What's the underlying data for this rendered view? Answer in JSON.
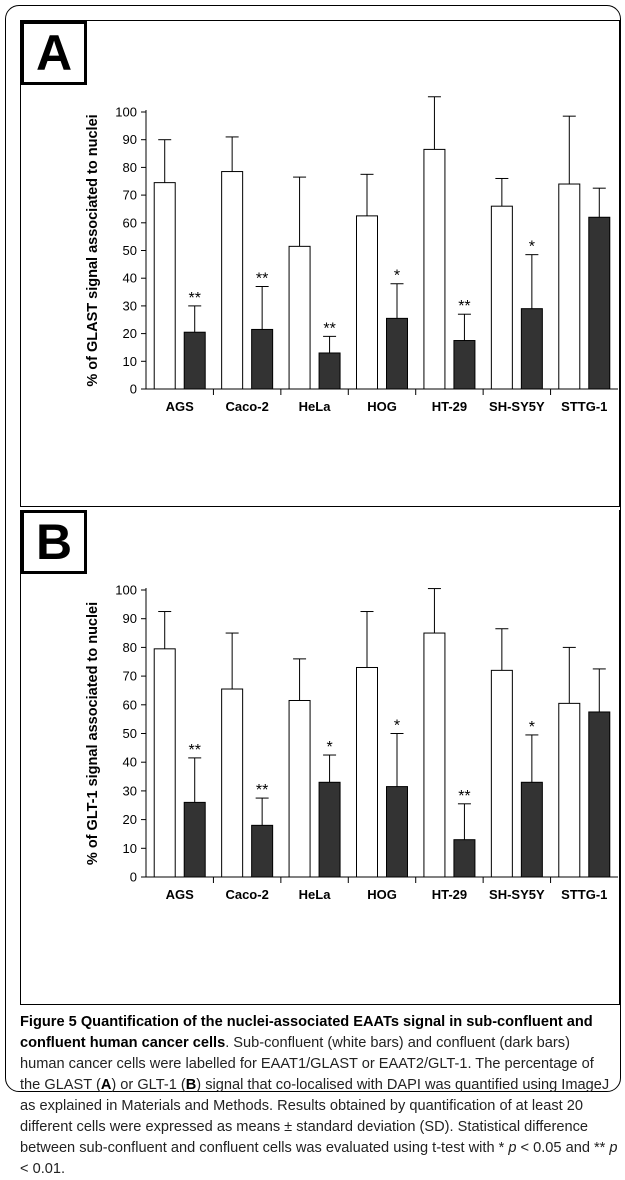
{
  "chart_data": [
    {
      "type": "bar",
      "panel_label": "A",
      "ylabel": "% of GLAST signal associated to nuclei",
      "categories": [
        "AGS",
        "Caco-2",
        "HeLa",
        "HOG",
        "HT-29",
        "SH-SY5Y",
        "STTG-1"
      ],
      "ylim": [
        0,
        100
      ],
      "yticks": [
        0,
        10,
        20,
        30,
        40,
        50,
        60,
        70,
        80,
        90,
        100
      ],
      "series": [
        {
          "values": [
            74.5,
            78.5,
            51.5,
            62.5,
            86.5,
            66,
            74
          ],
          "errors": [
            15.5,
            12.5,
            25,
            15,
            19,
            10,
            24.5
          ],
          "color": "#ffffff"
        },
        {
          "values": [
            20.5,
            21.5,
            13,
            25.5,
            17.5,
            29,
            62
          ],
          "errors": [
            9.5,
            15.5,
            6,
            12.5,
            9.5,
            19.5,
            10.5
          ],
          "color": "#333333"
        }
      ],
      "significance": [
        "**",
        "**",
        "**",
        "*",
        "**",
        "*",
        ""
      ]
    },
    {
      "type": "bar",
      "panel_label": "B",
      "ylabel": "% of GLT-1 signal associated to nuclei",
      "categories": [
        "AGS",
        "Caco-2",
        "HeLa",
        "HOG",
        "HT-29",
        "SH-SY5Y",
        "STTG-1"
      ],
      "ylim": [
        0,
        100
      ],
      "yticks": [
        0,
        10,
        20,
        30,
        40,
        50,
        60,
        70,
        80,
        90,
        100
      ],
      "series": [
        {
          "values": [
            79.5,
            65.5,
            61.5,
            73,
            85,
            72,
            60.5
          ],
          "errors": [
            13,
            19.5,
            14.5,
            19.5,
            15.5,
            14.5,
            19.5
          ],
          "color": "#ffffff"
        },
        {
          "values": [
            26,
            18,
            33,
            31.5,
            13,
            33,
            57.5
          ],
          "errors": [
            15.5,
            9.5,
            9.5,
            18.5,
            12.5,
            16.5,
            15
          ],
          "color": "#333333"
        }
      ],
      "significance": [
        "**",
        "**",
        "*",
        "*",
        "**",
        "*",
        ""
      ]
    }
  ],
  "caption": {
    "title": "Figure 5 Quantification of the nuclei-associated EAATs signal in sub-confluent and confluent human cancer cells",
    "p1": ". Sub-confluent (white bars) and confluent (dark bars) human cancer cells were labelled for EAAT1/GLAST or EAAT2/GLT-1. The percentage of the GLAST (",
    "a": "A",
    "p2": ") or GLT-1 (",
    "b": "B",
    "p3": ") signal that co-localised with DAPI was quantified using ImageJ as explained in Materials and Methods. Results obtained by quantification of at least 20 different cells were expressed as means ± standard deviation (SD). Statistical difference between sub-confluent and confluent cells was evaluated using t-test with * ",
    "p_sym1": "p",
    "p4": " < 0.05 and ** ",
    "p_sym2": "p",
    "p5": " < 0.01."
  }
}
